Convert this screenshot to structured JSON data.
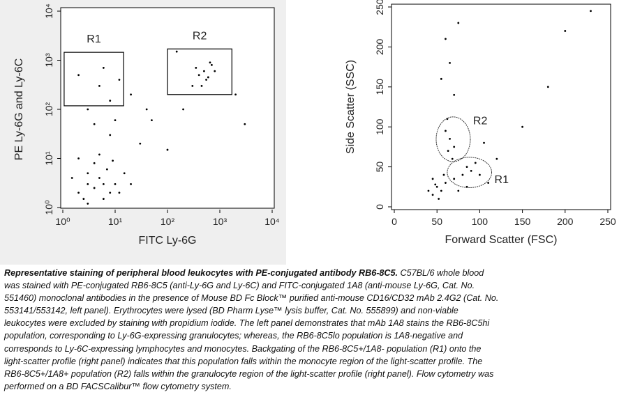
{
  "chart_data": [
    {
      "type": "scatter",
      "xlabel": "FITC Ly-6G",
      "ylabel": "PE Ly-6G and Ly-6C",
      "log": true,
      "color": "#000000",
      "x": [
        2,
        3,
        4,
        5,
        6,
        8,
        3,
        2.5,
        7,
        10,
        1.5,
        4,
        12,
        6,
        3,
        9,
        15,
        20,
        2,
        5,
        30,
        8,
        50,
        100,
        20,
        40,
        3,
        5,
        8,
        2,
        10,
        4,
        6,
        12,
        400,
        500,
        600,
        450,
        700,
        350,
        550,
        800,
        300,
        650,
        200,
        150,
        2000,
        3000
      ],
      "y": [
        2,
        3,
        2.5,
        4,
        3,
        2,
        5,
        1.5,
        6,
        3,
        4,
        8,
        2,
        1.5,
        1.2,
        9,
        5,
        3,
        10,
        12,
        20,
        30,
        60,
        15,
        200,
        100,
        100,
        300,
        150,
        500,
        60,
        50,
        700,
        400,
        500,
        600,
        450,
        300,
        800,
        700,
        400,
        600,
        300,
        900,
        100,
        1500,
        200,
        50
      ],
      "xlim": [
        1,
        10000
      ],
      "ylim": [
        1,
        10000
      ],
      "xticks": [
        {
          "value": 1,
          "label": "10⁰"
        },
        {
          "value": 10,
          "label": "10¹"
        },
        {
          "value": 100,
          "label": "10²"
        },
        {
          "value": 1000,
          "label": "10³"
        },
        {
          "value": 10000,
          "label": "10⁴"
        }
      ],
      "yticks": [
        {
          "value": 1,
          "label": "10⁰"
        },
        {
          "value": 10,
          "label": "10¹"
        },
        {
          "value": 100,
          "label": "10²"
        },
        {
          "value": 1000,
          "label": "10³"
        },
        {
          "value": 10000,
          "label": "10⁴"
        }
      ],
      "gates": [
        {
          "label": "R1",
          "shape": "rect",
          "x": [
            1.06,
            14.5
          ],
          "y": [
            118,
            1450
          ]
        },
        {
          "label": "R2",
          "shape": "rect",
          "x": [
            100,
            1700
          ],
          "y": [
            200,
            1700
          ]
        }
      ]
    },
    {
      "type": "scatter",
      "xlabel": "Forward Scatter (FSC)",
      "ylabel": "Side Scatter (SSC)",
      "log": false,
      "color": "#000000",
      "x": [
        50,
        60,
        70,
        55,
        45,
        80,
        90,
        100,
        65,
        60,
        70,
        62,
        70,
        65,
        60,
        75,
        55,
        120,
        150,
        200,
        230,
        110,
        85,
        95,
        48,
        52,
        58,
        75,
        40,
        105,
        180,
        45,
        68,
        63,
        85
      ],
      "y": [
        25,
        30,
        35,
        20,
        15,
        40,
        45,
        40,
        85,
        95,
        75,
        110,
        140,
        180,
        210,
        230,
        160,
        60,
        100,
        220,
        245,
        30,
        50,
        55,
        28,
        10,
        40,
        20,
        20,
        80,
        150,
        35,
        60,
        70,
        25
      ],
      "xlim": [
        0,
        250
      ],
      "ylim": [
        0,
        250
      ],
      "xticks": [
        0,
        50,
        100,
        150,
        200,
        250
      ],
      "yticks": [
        0,
        50,
        100,
        150,
        200,
        250
      ],
      "gates": [
        {
          "label": "R2",
          "shape": "ellipse",
          "cx": 69,
          "cy": 84.5,
          "rx": 20,
          "ry": 28
        },
        {
          "label": "R1",
          "shape": "ellipse",
          "cx": 88,
          "cy": 43,
          "rx": 26,
          "ry": 19
        }
      ]
    }
  ],
  "caption": {
    "lead": "Representative staining of peripheral blood leukocytes with PE-conjugated antibody RB6-8C5.",
    "lines": [
      " C57BL/6 whole blood",
      "was stained with PE-conjugated RB6-8C5 (anti-Ly-6G and Ly-6C) and FITC-conjugated 1A8 (anti-mouse Ly-6G, Cat. No.",
      "551460) monoclonal antibodies in the presence of Mouse BD Fc Block™ purified anti-mouse CD16/CD32 mAb 2.4G2 (Cat. No.",
      "553141/553142, left panel). Erythrocytes were lysed (BD Pharm Lyse™ lysis buffer, Cat. No. 555899) and non-viable",
      "leukocytes were excluded by staining with propidium iodide. The left panel demonstrates that mAb 1A8 stains the RB6-8C5hi",
      "population, corresponding to Ly-6G-expressing granulocytes; whereas,  the RB6-8C5lo population is 1A8-negative and",
      "corresponds to Ly-6C-expressing lymphocytes and monocytes. Backgating of the RB6-8C5+/1A8- population (R1) onto the",
      "light-scatter profile (right panel) indicates that this population falls within the monocyte region of the light-scatter profile. The",
      "RB6-8C5+/1A8+ population (R2) falls within the granulocyte region of the light-scatter profile (right panel). Flow cytometry was",
      "performed on a BD FACSCalibur™ flow cytometry system."
    ]
  }
}
